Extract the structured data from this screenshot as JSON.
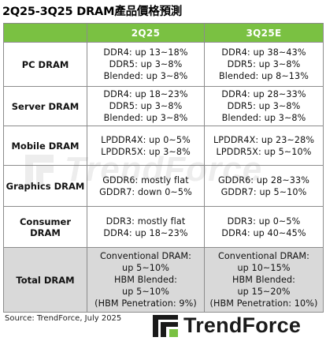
{
  "title": "2Q25-3Q25 DRAM產品價格預測",
  "table": {
    "headers": [
      "",
      "2Q25",
      "3Q25E"
    ],
    "rows": [
      {
        "label": "PC DRAM",
        "q2": [
          "DDR4: up 13~18%",
          "DDR5: up 3~8%",
          "Blended: up 3~8%"
        ],
        "q3": [
          "DDR4: up 38~43%",
          "DDR5: up 3~8%",
          "Blended: up 8~13%"
        ]
      },
      {
        "label": "Server DRAM",
        "q2": [
          "DDR4: up 18~23%",
          "DDR5: up 3~8%",
          "Blended: up 3~8%"
        ],
        "q3": [
          "DDR4: up 28~33%",
          "DDR5: up 3~8%",
          "Blended: up 3~8%"
        ]
      },
      {
        "label": "Mobile DRAM",
        "q2": [
          "LPDDR4X: up 0~5%",
          "LPDDR5X: up 3~8%"
        ],
        "q3": [
          "LPDDR4X: up 23~28%",
          "LPDDR5X: up 5~10%"
        ]
      },
      {
        "label": "Graphics DRAM",
        "q2": [
          "GDDR6: mostly flat",
          "GDDR7: down 0~5%"
        ],
        "q3": [
          "GDDR6: up 28~33%",
          "GDDR7: up 5~10%"
        ]
      },
      {
        "label": "Consumer DRAM",
        "q2": [
          "DDR3: mostly flat",
          "DDR4: up 18~23%"
        ],
        "q3": [
          "DDR3: up 0~5%",
          "DDR4: up 40~45%"
        ]
      },
      {
        "label": "Total DRAM",
        "q2": [
          "Conventional DRAM:",
          "up 5~10%",
          "HBM Blended:",
          "up 5~10%",
          "(HBM Penetration: 9%)"
        ],
        "q3": [
          "Conventional DRAM:",
          "up 10~15%",
          "HBM Blended:",
          "up 15~20%",
          "(HBM Penetration: 10%)"
        ]
      }
    ]
  },
  "watermark": "TrendForce",
  "source": "Source: TrendForce, July 2025",
  "brand": {
    "name": "TrendForce",
    "icon": "trendforce-logo-icon"
  },
  "colors": {
    "header_bg": "#7ac142",
    "header_text": "#ffffff",
    "total_row_bg": "#d9d9d9",
    "border": "#8c8c8c"
  }
}
